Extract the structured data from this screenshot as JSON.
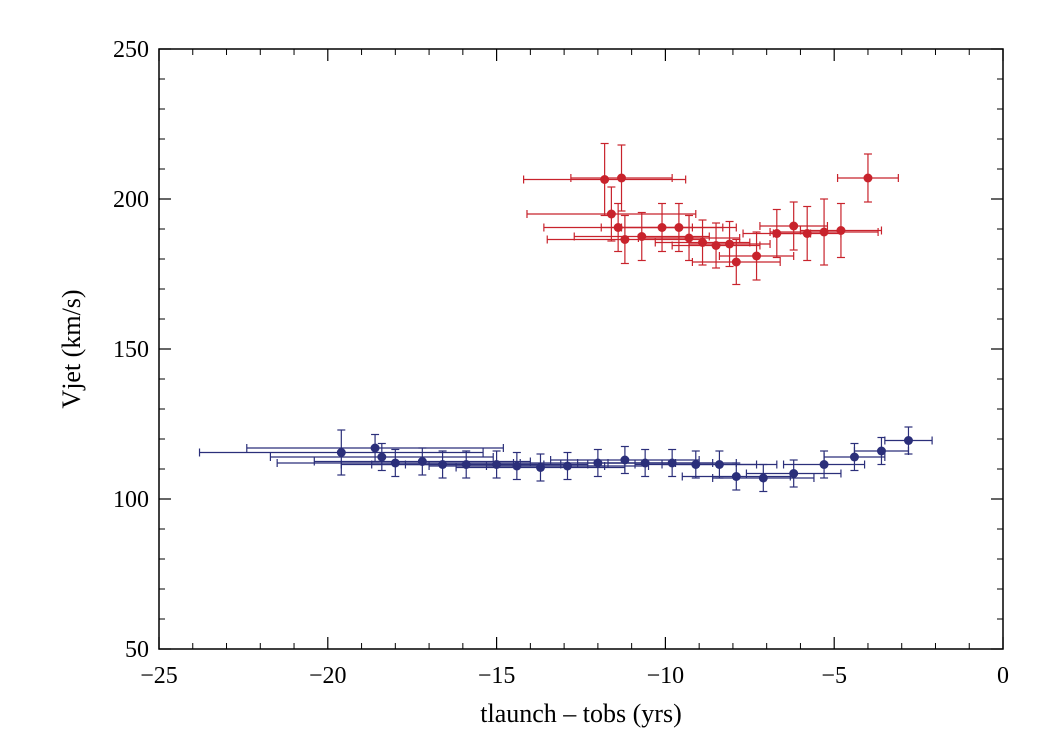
{
  "chart_data": {
    "type": "scatter",
    "title": "",
    "xlabel": "tlaunch – tobs (yrs)",
    "ylabel": "Vjet (km/s)",
    "xlim": [
      -25,
      0
    ],
    "ylim": [
      50,
      250
    ],
    "xticks": [
      -25,
      -20,
      -15,
      -10,
      -5,
      0
    ],
    "xtick_labels": [
      "−25",
      "−20",
      "−15",
      "−10",
      "−5",
      "0"
    ],
    "yticks": [
      50,
      100,
      150,
      200,
      250
    ],
    "ytick_labels": [
      "50",
      "100",
      "150",
      "200",
      "250"
    ],
    "grid": false,
    "error_bars": true,
    "series": [
      {
        "name": "red",
        "color": "#c8232c",
        "points": [
          {
            "x": -11.8,
            "y": 206.5,
            "xerr": 2.4,
            "yerr": 12
          },
          {
            "x": -11.3,
            "y": 207,
            "xerr": 1.5,
            "yerr": 11
          },
          {
            "x": -11.6,
            "y": 195,
            "xerr": 2.5,
            "yerr": 9
          },
          {
            "x": -11.4,
            "y": 190.5,
            "xerr": 2.2,
            "yerr": 8
          },
          {
            "x": -11.2,
            "y": 186.5,
            "xerr": 2.3,
            "yerr": 8
          },
          {
            "x": -10.1,
            "y": 190.5,
            "xerr": 1.8,
            "yerr": 8
          },
          {
            "x": -10.7,
            "y": 187.5,
            "xerr": 2.0,
            "yerr": 8
          },
          {
            "x": -9.6,
            "y": 190.5,
            "xerr": 1.7,
            "yerr": 8
          },
          {
            "x": -9.3,
            "y": 187,
            "xerr": 1.5,
            "yerr": 7.5
          },
          {
            "x": -8.9,
            "y": 185.5,
            "xerr": 1.4,
            "yerr": 7.5
          },
          {
            "x": -8.5,
            "y": 184.5,
            "xerr": 1.3,
            "yerr": 7.5
          },
          {
            "x": -8.1,
            "y": 185,
            "xerr": 1.2,
            "yerr": 7.5
          },
          {
            "x": -7.9,
            "y": 179,
            "xerr": 1.3,
            "yerr": 7.5
          },
          {
            "x": -7.3,
            "y": 181,
            "xerr": 1.1,
            "yerr": 8
          },
          {
            "x": -6.7,
            "y": 188.5,
            "xerr": 1.0,
            "yerr": 8
          },
          {
            "x": -6.2,
            "y": 191,
            "xerr": 1.0,
            "yerr": 8
          },
          {
            "x": -5.8,
            "y": 188.5,
            "xerr": 1.0,
            "yerr": 9
          },
          {
            "x": -5.3,
            "y": 189,
            "xerr": 1.6,
            "yerr": 11
          },
          {
            "x": -4.8,
            "y": 189.5,
            "xerr": 1.2,
            "yerr": 9
          },
          {
            "x": -4.0,
            "y": 207,
            "xerr": 0.9,
            "yerr": 8
          }
        ]
      },
      {
        "name": "blue",
        "color": "#2b2f7a",
        "points": [
          {
            "x": -19.6,
            "y": 115.5,
            "xerr": 4.2,
            "yerr": 7.5
          },
          {
            "x": -18.6,
            "y": 117,
            "xerr": 3.8,
            "yerr": 4.5
          },
          {
            "x": -18.4,
            "y": 114,
            "xerr": 3.3,
            "yerr": 4.5
          },
          {
            "x": -18.0,
            "y": 112,
            "xerr": 3.5,
            "yerr": 4.5
          },
          {
            "x": -17.2,
            "y": 112.5,
            "xerr": 3.2,
            "yerr": 4.5
          },
          {
            "x": -16.6,
            "y": 111.5,
            "xerr": 3.0,
            "yerr": 4.5
          },
          {
            "x": -15.9,
            "y": 111.5,
            "xerr": 2.8,
            "yerr": 4.5
          },
          {
            "x": -15.0,
            "y": 111.5,
            "xerr": 2.7,
            "yerr": 4.5
          },
          {
            "x": -14.4,
            "y": 111,
            "xerr": 2.6,
            "yerr": 4.5
          },
          {
            "x": -13.7,
            "y": 110.5,
            "xerr": 2.5,
            "yerr": 4.5
          },
          {
            "x": -12.9,
            "y": 111,
            "xerr": 2.4,
            "yerr": 4.5
          },
          {
            "x": -12.0,
            "y": 112,
            "xerr": 2.3,
            "yerr": 4.5
          },
          {
            "x": -11.2,
            "y": 113,
            "xerr": 2.2,
            "yerr": 4.5
          },
          {
            "x": -10.6,
            "y": 112,
            "xerr": 2.0,
            "yerr": 4.5
          },
          {
            "x": -9.8,
            "y": 112,
            "xerr": 1.9,
            "yerr": 4.5
          },
          {
            "x": -9.1,
            "y": 111.5,
            "xerr": 1.8,
            "yerr": 4.5
          },
          {
            "x": -8.4,
            "y": 111.5,
            "xerr": 1.7,
            "yerr": 4.5
          },
          {
            "x": -7.9,
            "y": 107.5,
            "xerr": 1.6,
            "yerr": 4.5
          },
          {
            "x": -7.1,
            "y": 107,
            "xerr": 1.5,
            "yerr": 4.5
          },
          {
            "x": -6.2,
            "y": 108.5,
            "xerr": 1.4,
            "yerr": 4.5
          },
          {
            "x": -5.3,
            "y": 111.5,
            "xerr": 1.2,
            "yerr": 4.5
          },
          {
            "x": -4.4,
            "y": 114,
            "xerr": 0.9,
            "yerr": 4.5
          },
          {
            "x": -3.6,
            "y": 116,
            "xerr": 0.8,
            "yerr": 4.5
          },
          {
            "x": -2.8,
            "y": 119.5,
            "xerr": 0.7,
            "yerr": 4.5
          }
        ]
      }
    ]
  }
}
